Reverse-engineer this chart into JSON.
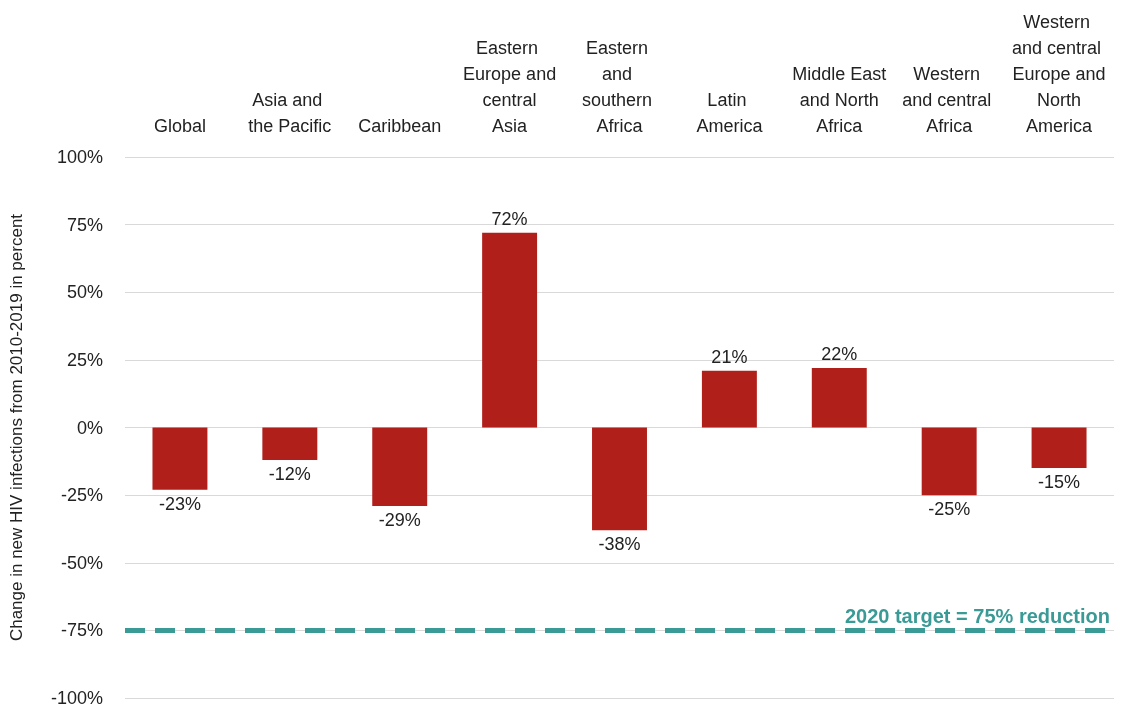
{
  "chart_data": {
    "type": "bar",
    "ylabel": "Change in new HIV infections from 2010-2019 in percent",
    "categories": [
      "Global",
      "Asia and the Pacific",
      "Caribbean",
      "Eastern Europe and central Asia",
      "Eastern and southern Africa",
      "Latin America",
      "Middle East and North Africa",
      "Western and central Africa",
      "Western and central Europe and North America"
    ],
    "values": [
      -23,
      -12,
      -29,
      72,
      -38,
      21,
      22,
      -25,
      -15
    ],
    "value_labels": [
      "-23%",
      "-12%",
      "-29%",
      "72%",
      "-38%",
      "21%",
      "22%",
      "-25%",
      "-15%"
    ],
    "color": "#b01f1a",
    "ylim": [
      -100,
      100
    ],
    "yticks": [
      {
        "value": -100,
        "label": "-100%"
      },
      {
        "value": -75,
        "label": "-75%"
      },
      {
        "value": -50,
        "label": "-50%"
      },
      {
        "value": -25,
        "label": "-25%"
      },
      {
        "value": 0,
        "label": "0%"
      },
      {
        "value": 25,
        "label": "25%"
      },
      {
        "value": 50,
        "label": "50%"
      },
      {
        "value": 75,
        "label": "75%"
      },
      {
        "value": 100,
        "label": "100%"
      }
    ],
    "grid": "y",
    "ref_lines": [
      {
        "axis": "y",
        "value": -75,
        "color": "#3a9a96",
        "line_style": "dashed"
      }
    ],
    "annotations": [
      "2020 target = 75% reduction"
    ]
  }
}
